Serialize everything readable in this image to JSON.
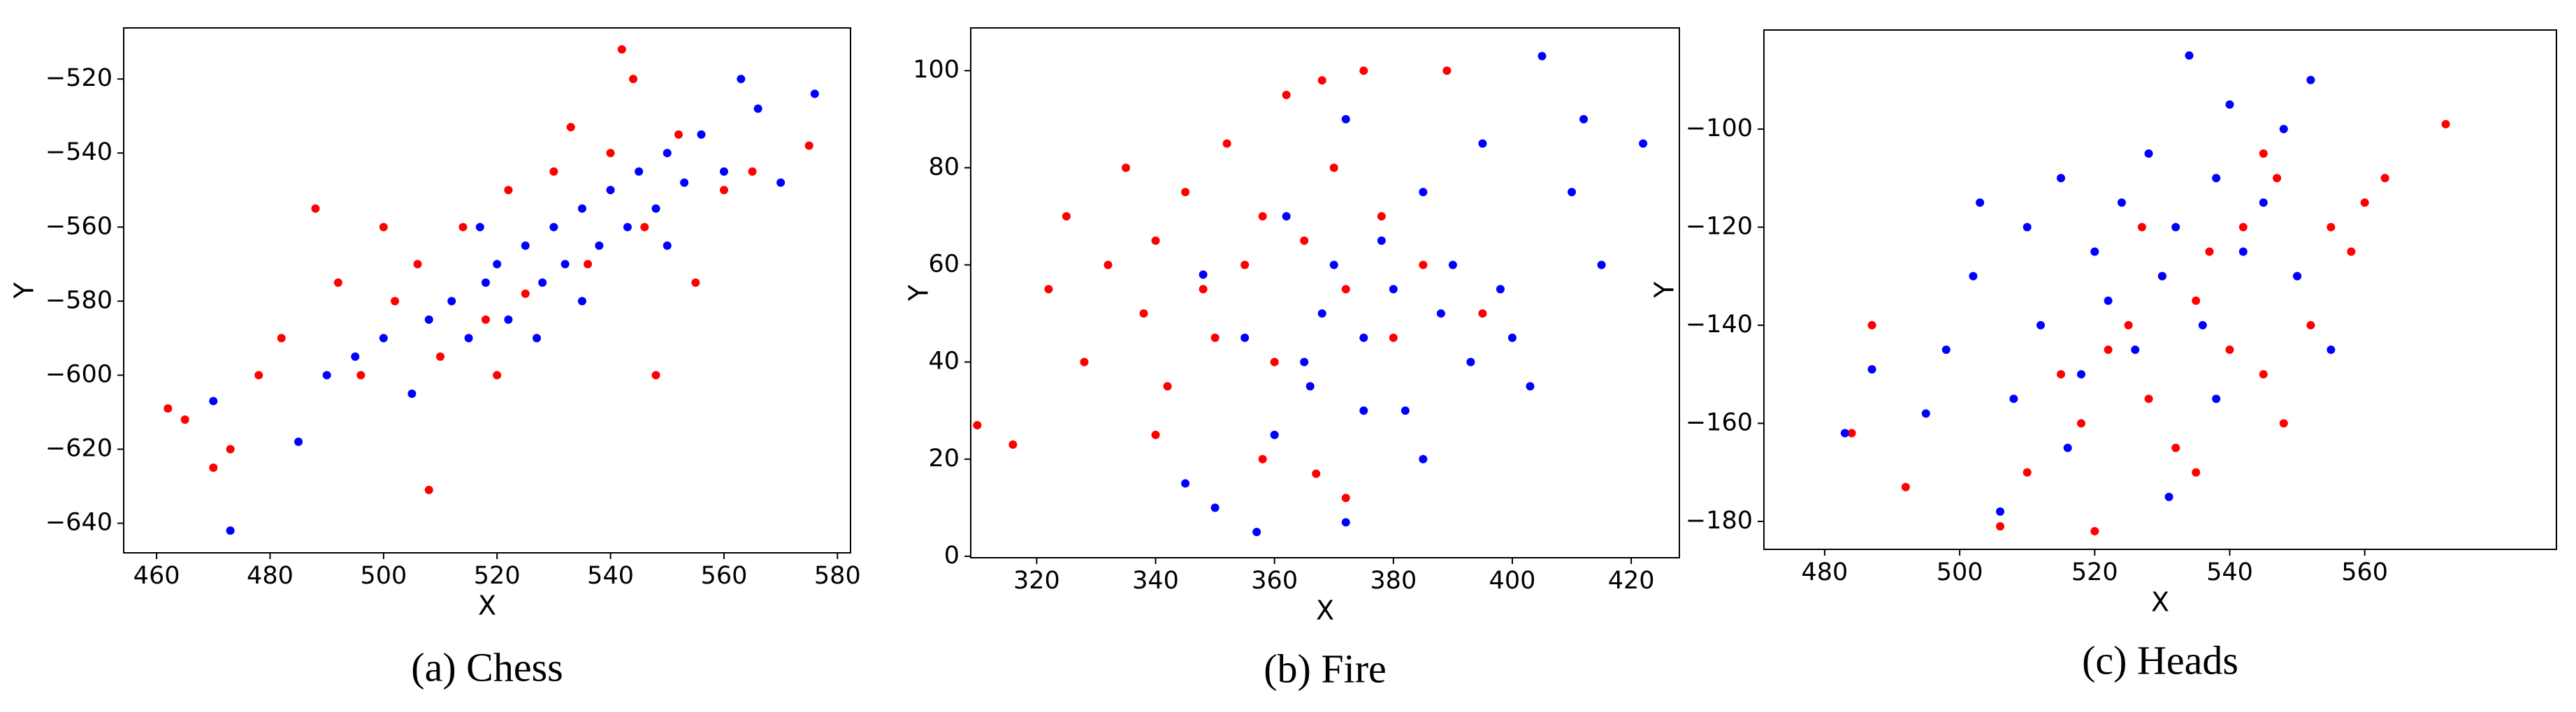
{
  "chart_data": [
    {
      "type": "scatter",
      "caption": "(a) Chess",
      "x_label": "X",
      "y_label": "Y",
      "xlim": [
        454.2,
        582.3
      ],
      "ylim": [
        -648,
        -506.2
      ],
      "xticks": [
        460,
        480,
        500,
        520,
        540,
        560,
        580
      ],
      "yticks": [
        {
          "value": -640,
          "label": "−640"
        },
        {
          "value": -620,
          "label": "−620"
        },
        {
          "value": -600,
          "label": "−600"
        },
        {
          "value": -580,
          "label": "−580"
        },
        {
          "value": -560,
          "label": "−560"
        },
        {
          "value": -540,
          "label": "−540"
        },
        {
          "value": -520,
          "label": "−520"
        }
      ],
      "series": [
        {
          "color": "#ff0000",
          "x": [
            462,
            465,
            470,
            473,
            478,
            482,
            488,
            492,
            496,
            502,
            506,
            508,
            510,
            514,
            518,
            522,
            525,
            530,
            533,
            536,
            540,
            542,
            544,
            546,
            548,
            552,
            555,
            560,
            565,
            575,
            520,
            500
          ],
          "values": [
            -609,
            -612,
            -625,
            -620,
            -600,
            -590,
            -555,
            -575,
            -600,
            -580,
            -570,
            -631,
            -595,
            -560,
            -585,
            -550,
            -578,
            -545,
            -533,
            -570,
            -540,
            -512,
            -520,
            -560,
            -600,
            -535,
            -575,
            -550,
            -545,
            -538,
            -600,
            -560
          ]
        },
        {
          "color": "#0000ff",
          "x": [
            473,
            470,
            485,
            490,
            495,
            500,
            505,
            508,
            512,
            515,
            518,
            520,
            522,
            525,
            528,
            530,
            532,
            535,
            538,
            540,
            543,
            545,
            548,
            550,
            553,
            556,
            560,
            563,
            566,
            570,
            576,
            527,
            517,
            535,
            550
          ],
          "values": [
            -642,
            -607,
            -618,
            -600,
            -595,
            -590,
            -605,
            -585,
            -580,
            -590,
            -575,
            -570,
            -585,
            -565,
            -575,
            -560,
            -570,
            -555,
            -565,
            -550,
            -560,
            -545,
            -555,
            -540,
            -548,
            -535,
            -545,
            -520,
            -528,
            -548,
            -524,
            -590,
            -560,
            -580,
            -565
          ]
        }
      ]
    },
    {
      "type": "scatter",
      "caption": "(b) Fire",
      "x_label": "X",
      "y_label": "Y",
      "xlim": [
        308.9,
        428.1
      ],
      "ylim": [
        -0.3,
        108.8
      ],
      "xticks": [
        320,
        340,
        360,
        380,
        400,
        420
      ],
      "yticks": [
        0,
        20,
        40,
        60,
        80,
        100
      ],
      "series": [
        {
          "color": "#ff0000",
          "x": [
            310,
            316,
            322,
            325,
            328,
            332,
            335,
            338,
            340,
            342,
            345,
            348,
            350,
            352,
            355,
            358,
            360,
            362,
            365,
            368,
            370,
            372,
            375,
            378,
            380,
            385,
            389,
            358,
            367,
            372,
            340,
            395
          ],
          "values": [
            27,
            23,
            55,
            70,
            40,
            60,
            80,
            50,
            65,
            35,
            75,
            55,
            45,
            85,
            60,
            70,
            40,
            95,
            65,
            98,
            80,
            55,
            100,
            70,
            45,
            60,
            100,
            20,
            17,
            12,
            25,
            50
          ]
        },
        {
          "color": "#0000ff",
          "x": [
            345,
            350,
            357,
            360,
            365,
            368,
            370,
            372,
            375,
            378,
            380,
            382,
            385,
            388,
            390,
            393,
            395,
            398,
            400,
            403,
            405,
            410,
            412,
            415,
            422,
            362,
            355,
            372,
            385,
            366,
            375,
            348
          ],
          "values": [
            15,
            10,
            5,
            25,
            40,
            50,
            60,
            7,
            45,
            65,
            55,
            30,
            75,
            50,
            60,
            40,
            85,
            55,
            45,
            35,
            103,
            75,
            90,
            60,
            85,
            70,
            45,
            90,
            20,
            35,
            30,
            58
          ]
        }
      ]
    },
    {
      "type": "scatter",
      "caption": "(c) Heads",
      "x_label": "X",
      "y_label": "Y",
      "xlim": [
        471,
        588.4
      ],
      "ylim": [
        -185.7,
        -79.8
      ],
      "xticks": [
        480,
        500,
        520,
        540,
        560
      ],
      "yticks": [
        {
          "value": -180,
          "label": "−180"
        },
        {
          "value": -160,
          "label": "−160"
        },
        {
          "value": -140,
          "label": "−140"
        },
        {
          "value": -120,
          "label": "−120"
        },
        {
          "value": -100,
          "label": "−100"
        }
      ],
      "series": [
        {
          "color": "#ff0000",
          "x": [
            484,
            487,
            492,
            506,
            510,
            515,
            518,
            520,
            522,
            525,
            528,
            530,
            532,
            535,
            537,
            540,
            542,
            545,
            547,
            550,
            552,
            555,
            558,
            560,
            563,
            572,
            535,
            545,
            548,
            527
          ],
          "values": [
            -162,
            -140,
            -173,
            -181,
            -170,
            -150,
            -160,
            -182,
            -145,
            -140,
            -155,
            -130,
            -165,
            -135,
            -125,
            -145,
            -120,
            -150,
            -110,
            -130,
            -140,
            -120,
            -125,
            -115,
            -110,
            -99,
            -170,
            -105,
            -160,
            -120
          ]
        },
        {
          "color": "#0000ff",
          "x": [
            483,
            487,
            495,
            498,
            502,
            506,
            508,
            510,
            512,
            515,
            518,
            520,
            522,
            524,
            526,
            528,
            530,
            532,
            534,
            536,
            538,
            540,
            542,
            545,
            548,
            550,
            552,
            555,
            516,
            531,
            503,
            538
          ],
          "values": [
            -162,
            -149,
            -158,
            -145,
            -130,
            -178,
            -155,
            -120,
            -140,
            -110,
            -150,
            -125,
            -135,
            -115,
            -145,
            -105,
            -130,
            -120,
            -85,
            -140,
            -110,
            -95,
            -125,
            -115,
            -100,
            -130,
            -90,
            -145,
            -165,
            -175,
            -115,
            -155
          ]
        }
      ]
    }
  ]
}
